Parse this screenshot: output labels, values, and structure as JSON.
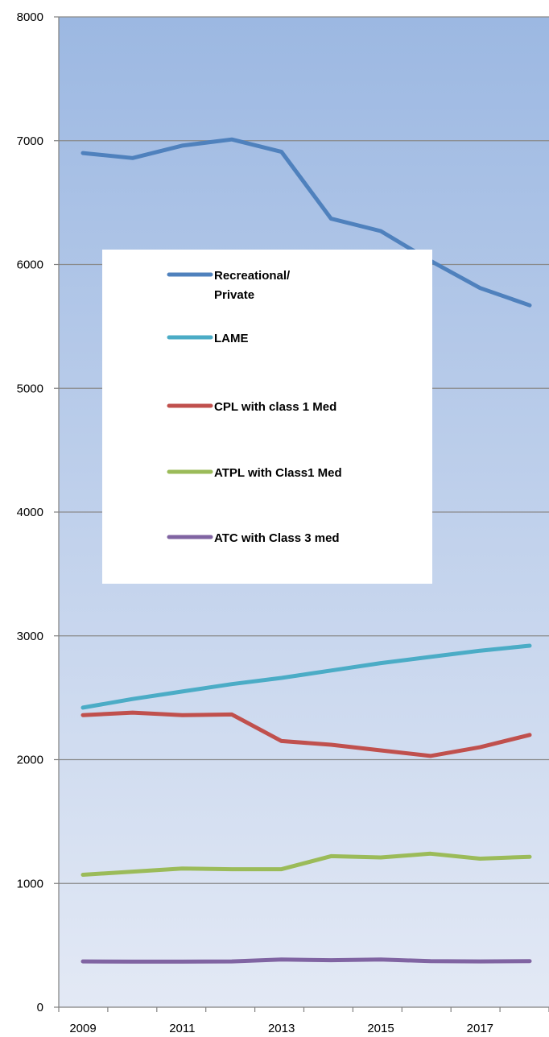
{
  "chart_data": {
    "type": "line",
    "title": "",
    "xlabel": "",
    "ylabel": "",
    "x": [
      2009,
      2010,
      2011,
      2012,
      2013,
      2014,
      2015,
      2016,
      2017,
      2018
    ],
    "x_tick_labels": [
      "2009",
      "2011",
      "2013",
      "2015",
      "2017"
    ],
    "ylim": [
      0,
      8000
    ],
    "y_ticks": [
      0,
      1000,
      2000,
      3000,
      4000,
      5000,
      6000,
      7000,
      8000
    ],
    "y_tick_labels": [
      "0",
      "1000",
      "2000",
      "3000",
      "4000",
      "5000",
      "6000",
      "7000",
      "8000"
    ],
    "grid": "horizontal",
    "legend_position": "center-left",
    "background": {
      "top": "#9cb8e2",
      "bottom": "#e3e9f5"
    },
    "series": [
      {
        "name_lines": [
          "Recreational/",
          "Private"
        ],
        "color": "#4f81bd",
        "values": [
          6900,
          6860,
          6960,
          7010,
          6910,
          6370,
          6270,
          6030,
          5810,
          5670
        ]
      },
      {
        "name_lines": [
          "LAME"
        ],
        "color": "#4bacc6",
        "values": [
          2420,
          2490,
          2550,
          2610,
          2660,
          2720,
          2780,
          2830,
          2880,
          2920
        ]
      },
      {
        "name_lines": [
          "CPL with class 1 Med"
        ],
        "color": "#c0504d",
        "values": [
          2360,
          2380,
          2360,
          2365,
          2150,
          2120,
          2075,
          2030,
          2100,
          2200
        ]
      },
      {
        "name_lines": [
          "ATPL with Class1 Med"
        ],
        "color": "#9bbb59",
        "values": [
          1070,
          1095,
          1120,
          1115,
          1115,
          1220,
          1210,
          1240,
          1200,
          1215
        ]
      },
      {
        "name_lines": [
          "ATC with Class 3 med"
        ],
        "color": "#8064a2",
        "values": [
          370,
          368,
          368,
          370,
          385,
          380,
          385,
          372,
          370,
          372
        ]
      }
    ]
  }
}
